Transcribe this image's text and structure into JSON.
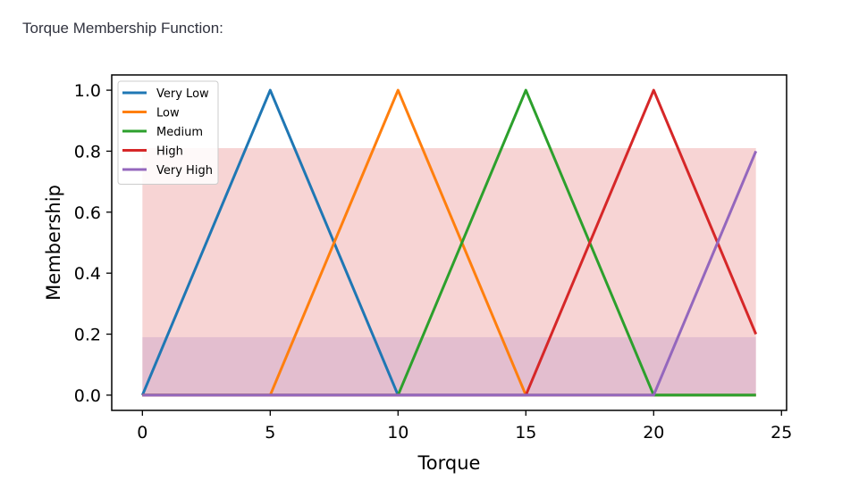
{
  "heading": "Torque Membership Function:",
  "chart_data": {
    "type": "line",
    "title": "",
    "xlabel": "Torque",
    "ylabel": "Membership",
    "xlim": [
      -1.2,
      25.2
    ],
    "ylim": [
      -0.05,
      1.05
    ],
    "xticks": [
      0,
      5,
      10,
      15,
      20,
      25
    ],
    "yticks": [
      0.0,
      0.2,
      0.4,
      0.6,
      0.8,
      1.0
    ],
    "yticks_labels": [
      "0.0",
      "0.2",
      "0.4",
      "0.6",
      "0.8",
      "1.0"
    ],
    "grid": false,
    "legend_placement": "upper-left",
    "series": [
      {
        "name": "Very Low",
        "color": "#1f77b4",
        "x": [
          0,
          5,
          10,
          24
        ],
        "y": [
          0,
          1,
          0,
          0
        ]
      },
      {
        "name": "Low",
        "color": "#ff7f0e",
        "x": [
          0,
          5,
          10,
          15,
          24
        ],
        "y": [
          0,
          0,
          1,
          0,
          0
        ]
      },
      {
        "name": "Medium",
        "color": "#2ca02c",
        "x": [
          0,
          10,
          15,
          20,
          24
        ],
        "y": [
          0,
          0,
          1,
          0,
          0
        ]
      },
      {
        "name": "High",
        "color": "#d62728",
        "x": [
          0,
          15,
          20,
          24
        ],
        "y": [
          0,
          0,
          1,
          0.2
        ]
      },
      {
        "name": "Very High",
        "color": "#9467bd",
        "x": [
          0,
          20,
          24
        ],
        "y": [
          0,
          0,
          0.8
        ]
      }
    ],
    "fills": [
      {
        "color": "#d62728",
        "opacity": 0.2,
        "x": [
          0,
          24
        ],
        "y_low": 0,
        "y_high": 0.81
      },
      {
        "color": "#9467bd",
        "opacity": 0.2,
        "x": [
          0,
          24
        ],
        "y_low": 0,
        "y_high": 0.19
      }
    ]
  }
}
